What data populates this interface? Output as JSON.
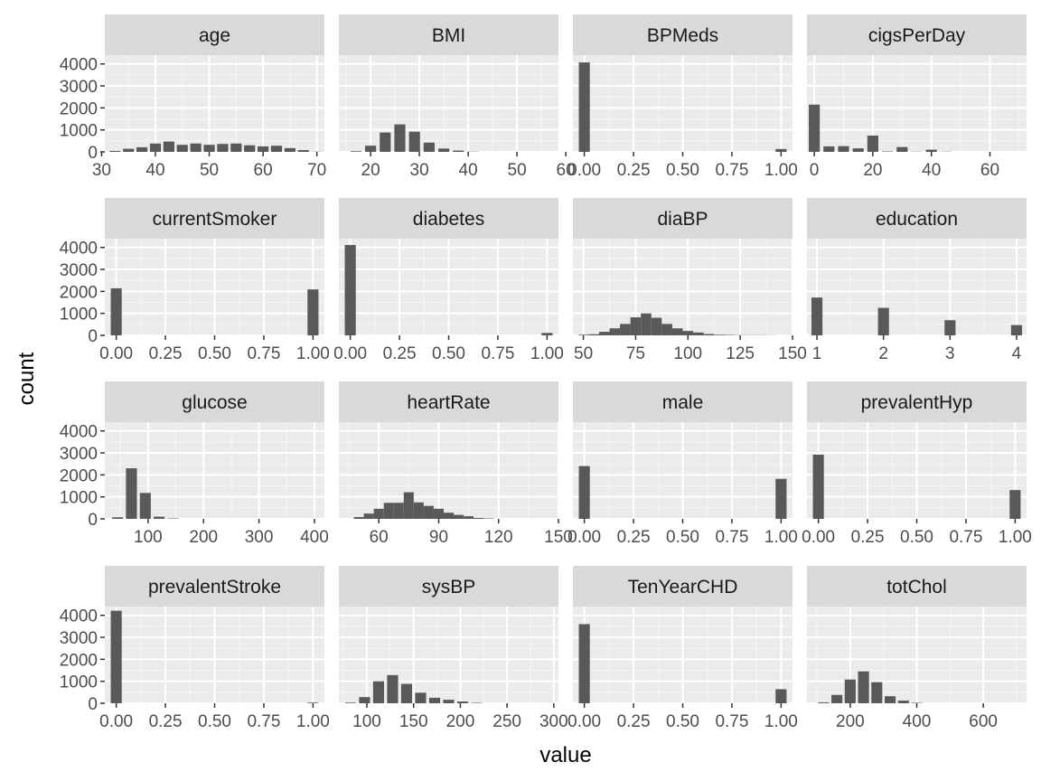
{
  "chart_data": {
    "type": "histogram-facets",
    "xlabel": "value",
    "ylabel": "count",
    "y_range": [
      0,
      4400
    ],
    "y_ticks": [
      0,
      1000,
      2000,
      3000,
      4000
    ],
    "y_tick_labels": [
      "0",
      "1000",
      "2000",
      "3000",
      "4000"
    ],
    "colors": {
      "panel_bg": "#ebebeb",
      "strip_bg": "#d9d9d9",
      "bar": "#595959",
      "grid_major": "#ffffff",
      "grid_minor": "#f5f5f5"
    },
    "facets": [
      {
        "name": "age",
        "x_range": [
          30.6,
          71.4
        ],
        "x_ticks": [
          30,
          40,
          50,
          60,
          70
        ],
        "x_tick_labels": [
          "30",
          "40",
          "50",
          "60",
          "70"
        ],
        "bins": [
          [
            32.5,
            40
          ],
          [
            35,
            140
          ],
          [
            37.5,
            210
          ],
          [
            40,
            380
          ],
          [
            42.5,
            470
          ],
          [
            45,
            320
          ],
          [
            47.5,
            380
          ],
          [
            50,
            320
          ],
          [
            52.5,
            360
          ],
          [
            55,
            380
          ],
          [
            57.5,
            300
          ],
          [
            60,
            250
          ],
          [
            62.5,
            280
          ],
          [
            65,
            170
          ],
          [
            67.5,
            80
          ],
          [
            70,
            10
          ]
        ]
      },
      {
        "name": "BMI",
        "x_range": [
          13.5,
          58.5
        ],
        "x_ticks": [
          20,
          30,
          40,
          50,
          60
        ],
        "x_tick_labels": [
          "20",
          "30",
          "40",
          "50",
          "60"
        ],
        "bins": [
          [
            17,
            30
          ],
          [
            20,
            280
          ],
          [
            23,
            880
          ],
          [
            26,
            1250
          ],
          [
            29,
            920
          ],
          [
            32,
            420
          ],
          [
            35,
            150
          ],
          [
            38,
            60
          ],
          [
            41,
            10
          ]
        ]
      },
      {
        "name": "BPMeds",
        "x_range": [
          -0.058,
          1.058
        ],
        "x_ticks": [
          0,
          0.25,
          0.5,
          0.75,
          1
        ],
        "x_tick_labels": [
          "0.00",
          "0.25",
          "0.50",
          "0.75",
          "1.00"
        ],
        "bins": [
          [
            0,
            4070
          ],
          [
            1,
            130
          ]
        ]
      },
      {
        "name": "cigsPerDay",
        "x_range": [
          -2.5,
          72.5
        ],
        "x_ticks": [
          0,
          20,
          40,
          60
        ],
        "x_tick_labels": [
          "0",
          "20",
          "40",
          "60"
        ],
        "bins": [
          [
            0,
            2150
          ],
          [
            5,
            250
          ],
          [
            10,
            260
          ],
          [
            15,
            160
          ],
          [
            20,
            740
          ],
          [
            25,
            20
          ],
          [
            30,
            220
          ],
          [
            35,
            10
          ],
          [
            40,
            100
          ],
          [
            45,
            10
          ]
        ]
      },
      {
        "name": "currentSmoker",
        "x_range": [
          -0.058,
          1.058
        ],
        "x_ticks": [
          0,
          0.25,
          0.5,
          0.75,
          1
        ],
        "x_tick_labels": [
          "0.00",
          "0.25",
          "0.50",
          "0.75",
          "1.00"
        ],
        "bins": [
          [
            0,
            2140
          ],
          [
            1,
            2090
          ]
        ]
      },
      {
        "name": "diabetes",
        "x_range": [
          -0.058,
          1.058
        ],
        "x_ticks": [
          0,
          0.25,
          0.5,
          0.75,
          1
        ],
        "x_tick_labels": [
          "0.00",
          "0.25",
          "0.50",
          "0.75",
          "1.00"
        ],
        "bins": [
          [
            0,
            4110
          ],
          [
            1,
            110
          ]
        ]
      },
      {
        "name": "diaBP",
        "x_range": [
          45,
          150
        ],
        "x_ticks": [
          50,
          75,
          100,
          125,
          150
        ],
        "x_tick_labels": [
          "50",
          "75",
          "100",
          "125",
          "150"
        ],
        "bins": [
          [
            50,
            30
          ],
          [
            55,
            50
          ],
          [
            60,
            160
          ],
          [
            65,
            320
          ],
          [
            70,
            520
          ],
          [
            75,
            820
          ],
          [
            80,
            1000
          ],
          [
            85,
            800
          ],
          [
            90,
            520
          ],
          [
            95,
            320
          ],
          [
            100,
            200
          ],
          [
            105,
            130
          ],
          [
            110,
            60
          ],
          [
            115,
            30
          ],
          [
            120,
            20
          ],
          [
            125,
            10
          ],
          [
            130,
            10
          ],
          [
            135,
            10
          ],
          [
            140,
            5
          ]
        ]
      },
      {
        "name": "education",
        "x_range": [
          0.85,
          4.15
        ],
        "x_ticks": [
          1,
          2,
          3,
          4
        ],
        "x_tick_labels": [
          "1",
          "2",
          "3",
          "4"
        ],
        "bins": [
          [
            1,
            1720
          ],
          [
            2,
            1250
          ],
          [
            3,
            690
          ],
          [
            4,
            470
          ]
        ]
      },
      {
        "name": "glucose",
        "x_range": [
          22,
          418
        ],
        "x_ticks": [
          100,
          200,
          300,
          400
        ],
        "x_tick_labels": [
          "100",
          "200",
          "300",
          "400"
        ],
        "bins": [
          [
            45,
            70
          ],
          [
            70,
            2300
          ],
          [
            95,
            1180
          ],
          [
            120,
            100
          ],
          [
            145,
            20
          ]
        ]
      },
      {
        "name": "heartRate",
        "x_range": [
          40,
          150
        ],
        "x_ticks": [
          60,
          90,
          120,
          150
        ],
        "x_tick_labels": [
          "60",
          "90",
          "120",
          "150"
        ],
        "bins": [
          [
            50,
            80
          ],
          [
            55,
            240
          ],
          [
            60,
            460
          ],
          [
            65,
            730
          ],
          [
            70,
            730
          ],
          [
            75,
            1210
          ],
          [
            80,
            750
          ],
          [
            85,
            590
          ],
          [
            90,
            460
          ],
          [
            95,
            280
          ],
          [
            100,
            180
          ],
          [
            105,
            120
          ],
          [
            110,
            40
          ],
          [
            115,
            20
          ]
        ]
      },
      {
        "name": "male",
        "x_range": [
          -0.058,
          1.058
        ],
        "x_ticks": [
          0,
          0.25,
          0.5,
          0.75,
          1
        ],
        "x_tick_labels": [
          "0.00",
          "0.25",
          "0.50",
          "0.75",
          "1.00"
        ],
        "bins": [
          [
            0,
            2400
          ],
          [
            1,
            1820
          ]
        ]
      },
      {
        "name": "prevalentHyp",
        "x_range": [
          -0.058,
          1.058
        ],
        "x_ticks": [
          0,
          0.25,
          0.5,
          0.75,
          1
        ],
        "x_tick_labels": [
          "0.00",
          "0.25",
          "0.50",
          "0.75",
          "1.00"
        ],
        "bins": [
          [
            0,
            2920
          ],
          [
            1,
            1310
          ]
        ]
      },
      {
        "name": "prevalentStroke",
        "x_range": [
          -0.058,
          1.058
        ],
        "x_ticks": [
          0,
          0.25,
          0.5,
          0.75,
          1
        ],
        "x_tick_labels": [
          "0.00",
          "0.25",
          "0.50",
          "0.75",
          "1.00"
        ],
        "bins": [
          [
            0,
            4210
          ],
          [
            1,
            30
          ]
        ]
      },
      {
        "name": "sysBP",
        "x_range": [
          70,
          305
        ],
        "x_ticks": [
          100,
          150,
          200,
          250,
          300
        ],
        "x_tick_labels": [
          "100",
          "150",
          "200",
          "250",
          "300"
        ],
        "bins": [
          [
            82.5,
            30
          ],
          [
            97.5,
            280
          ],
          [
            112.5,
            1000
          ],
          [
            127.5,
            1280
          ],
          [
            142.5,
            880
          ],
          [
            157.5,
            480
          ],
          [
            172.5,
            250
          ],
          [
            187.5,
            160
          ],
          [
            202.5,
            80
          ],
          [
            217.5,
            20
          ]
        ]
      },
      {
        "name": "TenYearCHD",
        "x_range": [
          -0.058,
          1.058
        ],
        "x_ticks": [
          0,
          0.25,
          0.5,
          0.75,
          1
        ],
        "x_tick_labels": [
          "0.00",
          "0.25",
          "0.50",
          "0.75",
          "1.00"
        ],
        "bins": [
          [
            0,
            3600
          ],
          [
            1,
            640
          ]
        ]
      },
      {
        "name": "totChol",
        "x_range": [
          70,
          730
        ],
        "x_ticks": [
          200,
          400,
          600
        ],
        "x_tick_labels": [
          "200",
          "400",
          "600"
        ],
        "bins": [
          [
            120,
            40
          ],
          [
            160,
            380
          ],
          [
            200,
            1080
          ],
          [
            240,
            1450
          ],
          [
            280,
            960
          ],
          [
            320,
            320
          ],
          [
            360,
            120
          ],
          [
            400,
            20
          ]
        ]
      }
    ]
  }
}
